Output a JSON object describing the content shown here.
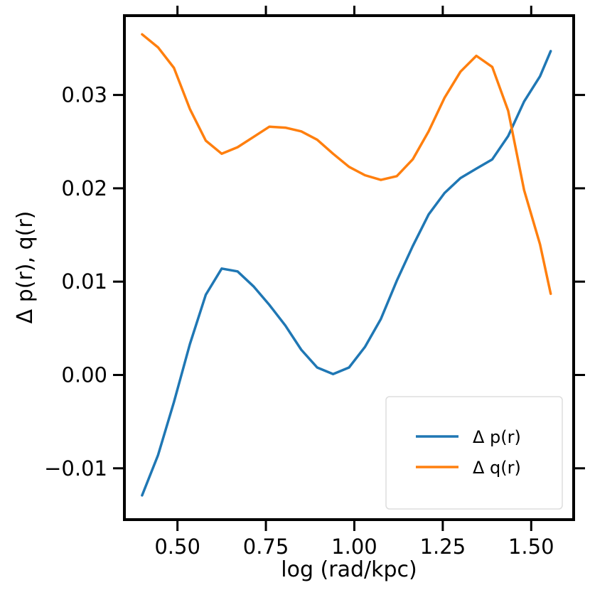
{
  "chart_data": {
    "type": "line",
    "title": "",
    "xlabel": "log (rad/kpc)",
    "ylabel": "Δ p(r), q(r)",
    "xlim": [
      0.35,
      1.62
    ],
    "ylim": [
      -0.0155,
      0.0385
    ],
    "x_ticks": [
      0.5,
      0.75,
      1.0,
      1.25,
      1.5
    ],
    "x_tick_labels": [
      "0.50",
      "0.75",
      "1.00",
      "1.25",
      "1.50"
    ],
    "y_ticks": [
      -0.01,
      0.0,
      0.01,
      0.02,
      0.03
    ],
    "y_tick_labels": [
      "−0.01",
      "0.00",
      "0.01",
      "0.02",
      "0.03"
    ],
    "grid": false,
    "legend_position": "lower-right",
    "x": [
      0.4,
      0.445,
      0.49,
      0.535,
      0.58,
      0.625,
      0.67,
      0.715,
      0.76,
      0.805,
      0.85,
      0.895,
      0.94,
      0.985,
      1.03,
      1.075,
      1.12,
      1.165,
      1.21,
      1.255,
      1.3,
      1.345,
      1.39,
      1.435,
      1.48,
      1.525,
      1.555
    ],
    "series": [
      {
        "name": "Δ p(r)",
        "color": "#1f77b4",
        "values": [
          -0.0129,
          -0.0086,
          -0.0029,
          0.0033,
          0.0086,
          0.0114,
          0.0111,
          0.0095,
          0.0075,
          0.0053,
          0.0027,
          0.0008,
          0.0001,
          0.0008,
          0.003,
          0.006,
          0.0101,
          0.0138,
          0.0172,
          0.0195,
          0.0211,
          0.0221,
          0.0231,
          0.0256,
          0.0293,
          0.032,
          0.0347
        ]
      },
      {
        "name": "Δ q(r)",
        "color": "#ff7f0e",
        "values": [
          0.0365,
          0.0351,
          0.0329,
          0.0285,
          0.0251,
          0.0237,
          0.0244,
          0.0255,
          0.0266,
          0.0265,
          0.0261,
          0.0252,
          0.0237,
          0.0223,
          0.0214,
          0.0209,
          0.0213,
          0.0231,
          0.0261,
          0.0297,
          0.0325,
          0.0342,
          0.033,
          0.0283,
          0.0198,
          0.014,
          0.0087
        ]
      }
    ]
  }
}
